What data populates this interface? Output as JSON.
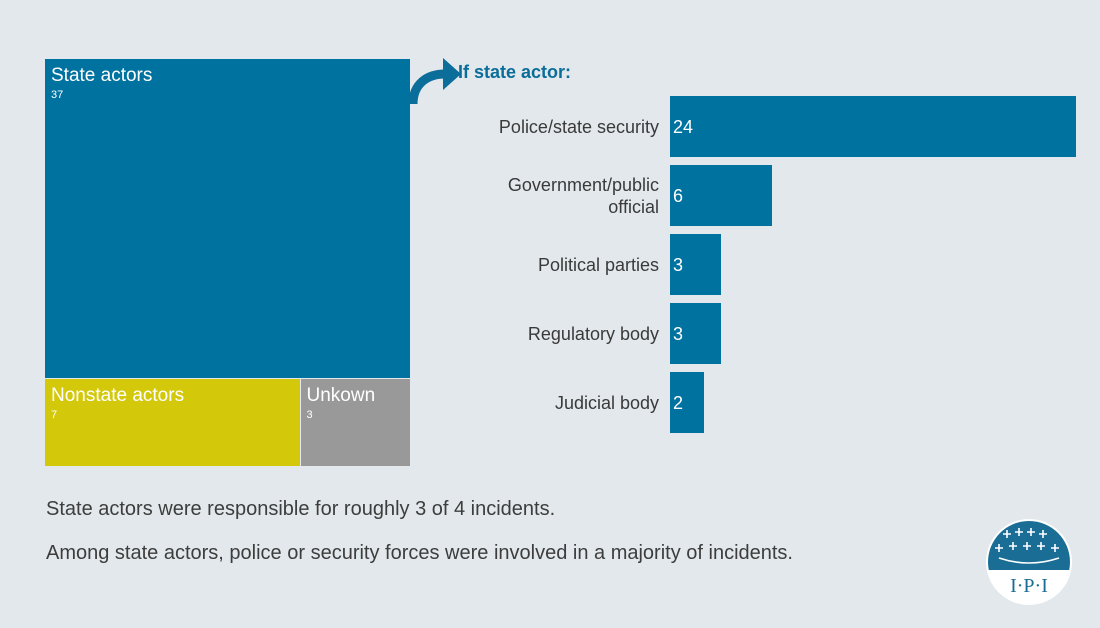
{
  "chart_data": [
    {
      "type": "treemap",
      "cells": [
        {
          "label": "State actors",
          "value": 37,
          "color": "#0072a0"
        },
        {
          "label": "Nonstate actors",
          "value": 7,
          "color": "#d4c80a"
        },
        {
          "label": "Unkown",
          "value": 3,
          "color": "#999999"
        }
      ]
    },
    {
      "type": "bar",
      "orientation": "horizontal",
      "title": "If state actor:",
      "categories": [
        "Police/state security",
        "Government/public official",
        "Political parties",
        "Regulatory body",
        "Judicial body"
      ],
      "values": [
        24,
        6,
        3,
        3,
        2
      ],
      "color": "#0072a0"
    }
  ],
  "notes": [
    "State actors were responsible for roughly 3 of 4 incidents.",
    "Among state actors, police or security forces were involved in a majority of incidents."
  ],
  "logo": {
    "text": "I·P·I",
    "color": "#1a6e96"
  }
}
